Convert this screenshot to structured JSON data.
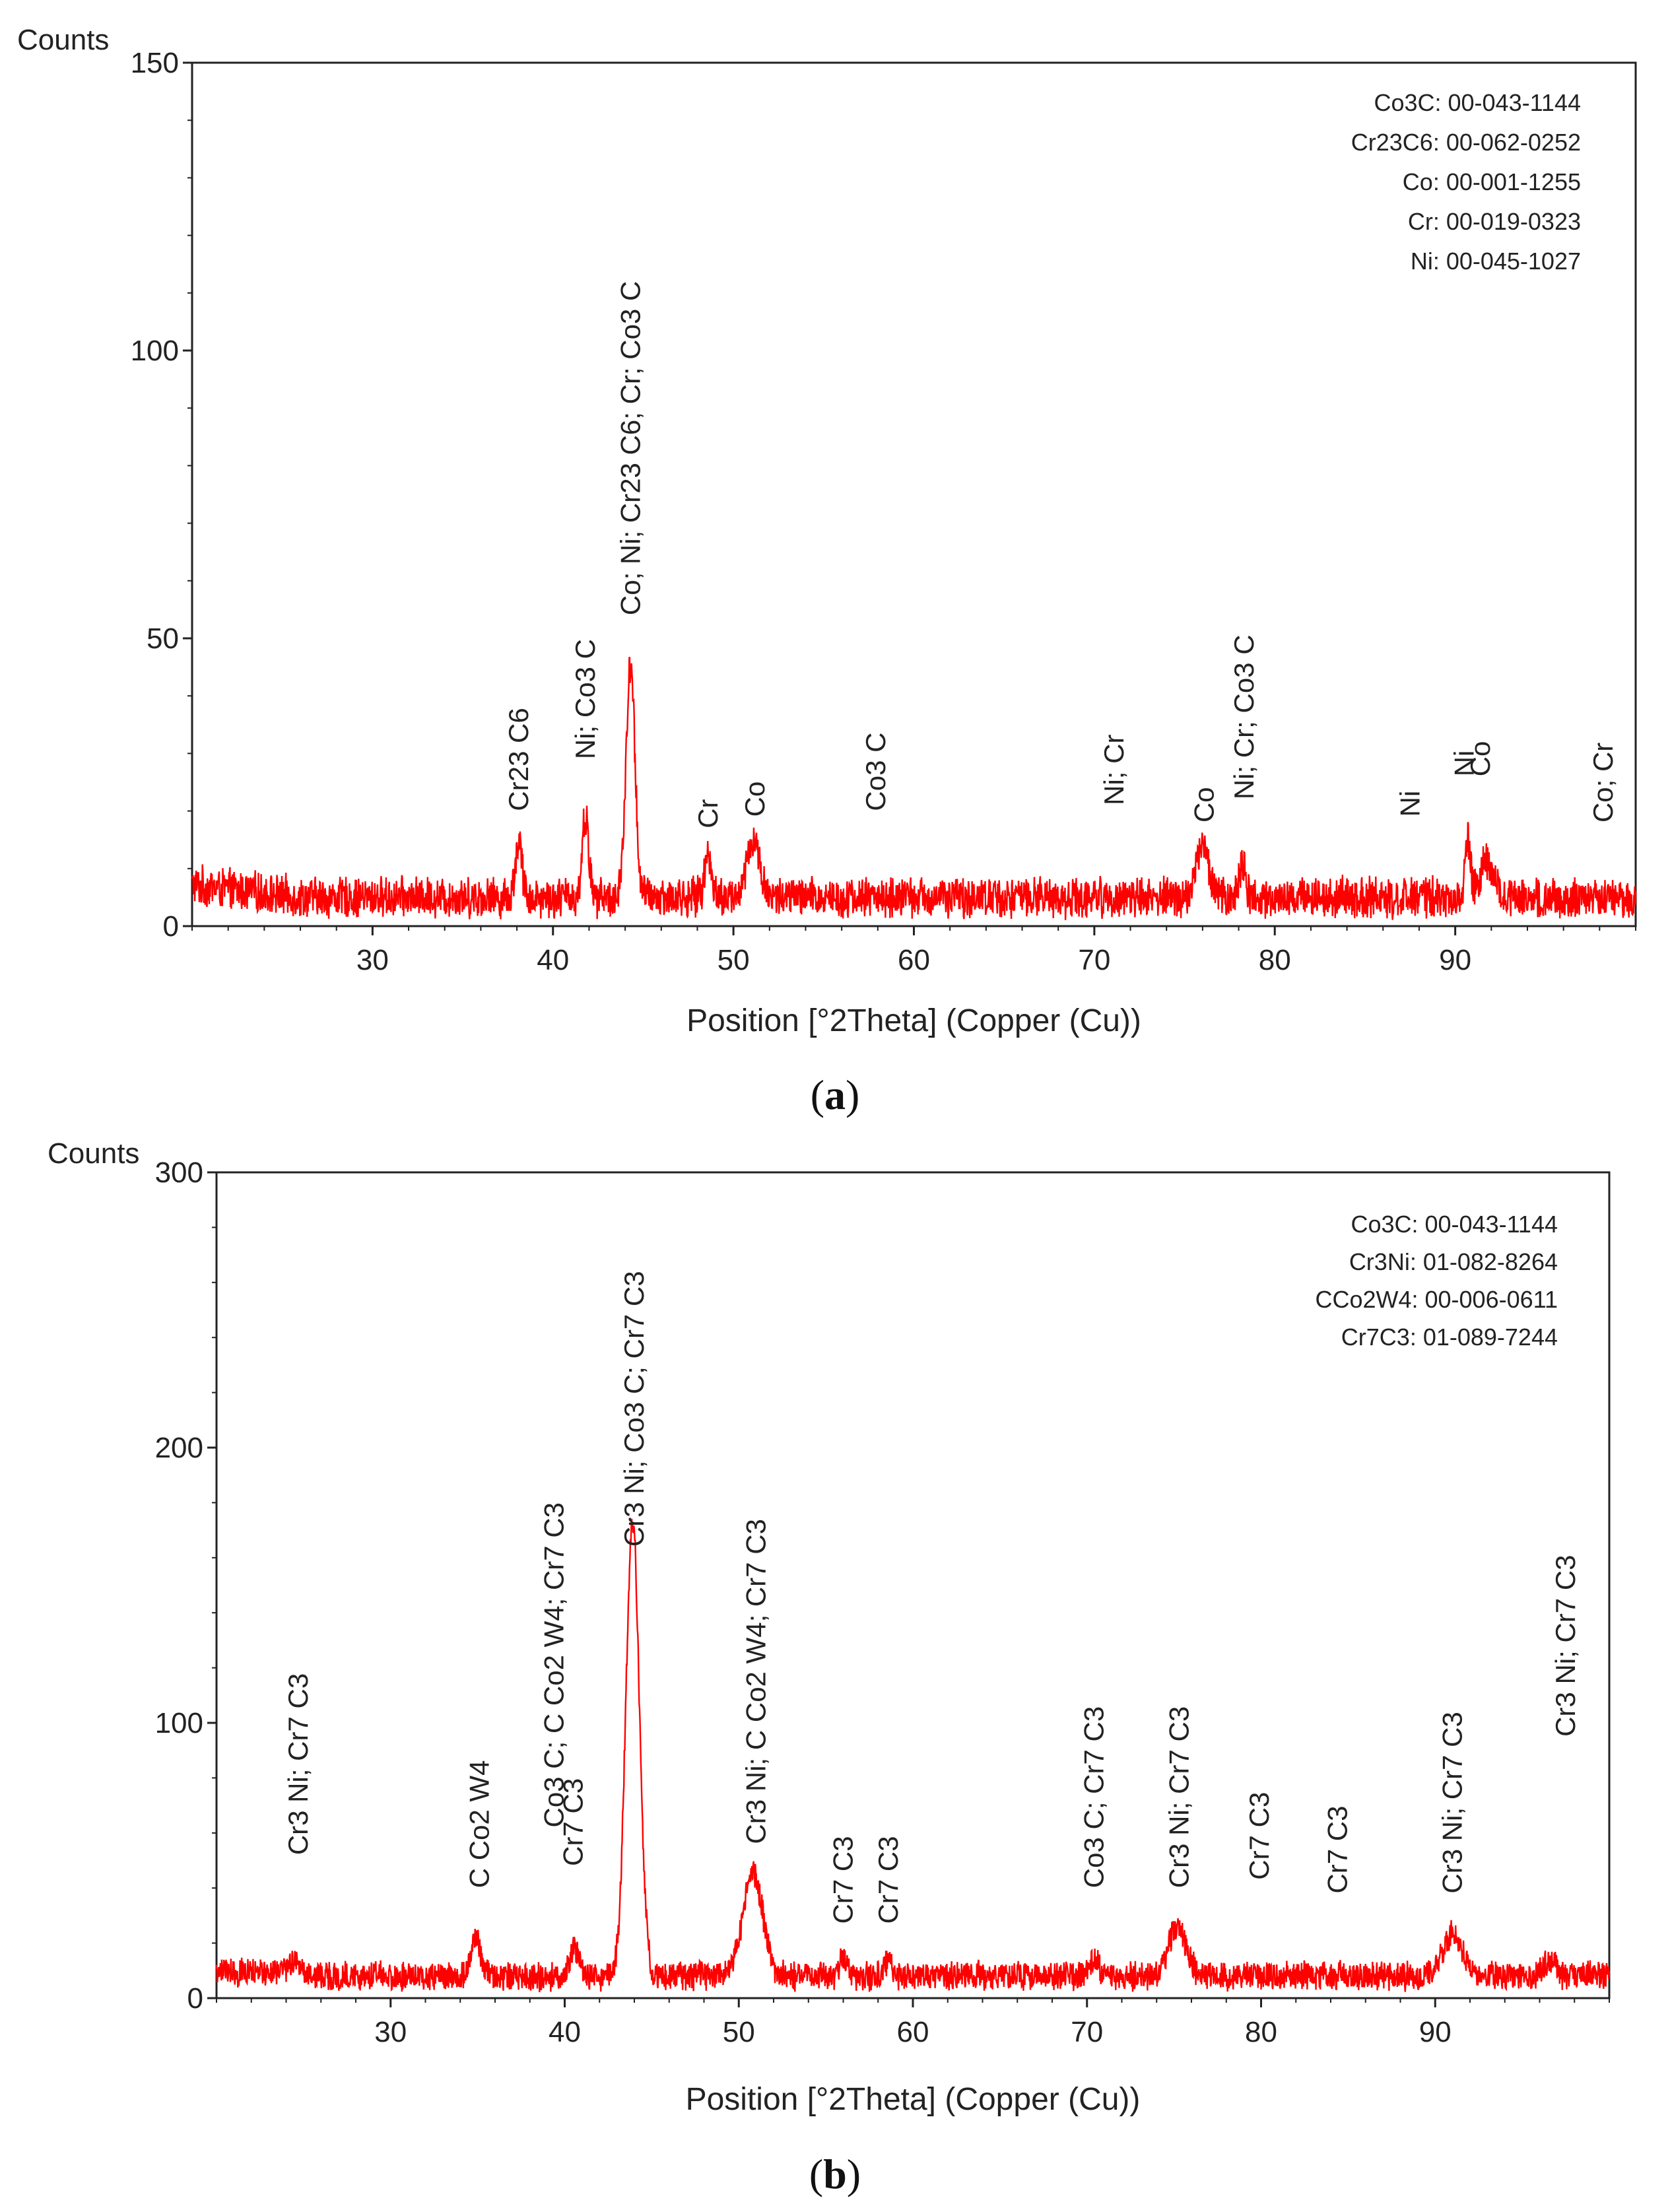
{
  "chart_data": [
    {
      "type": "line",
      "panel": "a",
      "ylabel": "Counts",
      "xlabel": "Position [°2Theta] (Copper (Cu))",
      "xlim": [
        20,
        100
      ],
      "ylim": [
        0,
        150
      ],
      "xticks": [
        30,
        40,
        50,
        60,
        70,
        80,
        90
      ],
      "yticks": [
        0,
        50,
        100,
        150
      ],
      "color": "#ff0000",
      "caption_letter": "a",
      "legend": [
        {
          "phase": "Co3C",
          "sub": "3",
          "base": "Co",
          "rest": "C",
          "code": ": 00-043-1144"
        },
        {
          "phase": "Cr23C6",
          "base": "Cr",
          "sub": "23",
          "rest": "C",
          "sub2": "6",
          "code": ": 00-062-0252"
        },
        {
          "phase": "Co",
          "code": "Co: 00-001-1255"
        },
        {
          "phase": "Cr",
          "code": "Cr: 00-019-0323"
        },
        {
          "phase": "Ni",
          "code": "Ni: 00-045-1027"
        }
      ],
      "baseline": 5,
      "noise": 4,
      "peaks": [
        {
          "x": 38.1,
          "height": 10,
          "width": 0.25
        },
        {
          "x": 41.8,
          "height": 14,
          "width": 0.25
        },
        {
          "x": 44.3,
          "height": 40,
          "width": 0.35
        },
        {
          "x": 48.6,
          "height": 7,
          "width": 0.3
        },
        {
          "x": 51.1,
          "height": 10,
          "width": 0.5
        },
        {
          "x": 76.0,
          "height": 9,
          "width": 0.5
        },
        {
          "x": 78.2,
          "height": 6,
          "width": 0.25
        },
        {
          "x": 90.7,
          "height": 10,
          "width": 0.2
        },
        {
          "x": 91.8,
          "height": 6,
          "width": 0.6
        }
      ],
      "labels": [
        {
          "x": 38.1,
          "y": 20,
          "text": "Cr23 C6"
        },
        {
          "x": 41.8,
          "y": 29,
          "text": "Ni; Co3 C"
        },
        {
          "x": 44.3,
          "y": 54,
          "text": "Co; Ni; Cr23 C6; Cr; Co3 C"
        },
        {
          "x": 48.6,
          "y": 17,
          "text": "Cr"
        },
        {
          "x": 51.2,
          "y": 19,
          "text": "Co"
        },
        {
          "x": 57.9,
          "y": 20,
          "text": "Co3 C"
        },
        {
          "x": 71.1,
          "y": 21,
          "text": "Ni; Cr"
        },
        {
          "x": 76.1,
          "y": 18,
          "text": "Co"
        },
        {
          "x": 78.3,
          "y": 22,
          "text": "Ni; Cr; Co3 C"
        },
        {
          "x": 87.5,
          "y": 19,
          "text": "Ni"
        },
        {
          "x": 90.5,
          "y": 26,
          "text": "Ni"
        },
        {
          "x": 91.4,
          "y": 26,
          "text": "Co"
        },
        {
          "x": 98.2,
          "y": 18,
          "text": "Co; Cr"
        }
      ]
    },
    {
      "type": "line",
      "panel": "b",
      "ylabel": "Counts",
      "xlabel": "Position [°2Theta] (Copper (Cu))",
      "xlim": [
        20,
        100
      ],
      "ylim": [
        0,
        300
      ],
      "xticks": [
        30,
        40,
        50,
        60,
        70,
        80,
        90
      ],
      "yticks": [
        0,
        100,
        200,
        300
      ],
      "color": "#ff0000",
      "caption_letter": "b",
      "legend": [
        {
          "phase": "Co3C",
          "code": "Co3C: 00-043-1144"
        },
        {
          "phase": "Cr3Ni",
          "code": "Cr3Ni: 01-082-8264"
        },
        {
          "phase": "CCo2W4",
          "code": "CCo2W4: 00-006-0611"
        },
        {
          "phase": "Cr7C3",
          "code": "Cr7C3: 01-089-7244"
        }
      ],
      "baseline": 8,
      "noise": 6,
      "peaks": [
        {
          "x": 24.5,
          "height": 4,
          "width": 0.6
        },
        {
          "x": 34.9,
          "height": 14,
          "width": 0.4
        },
        {
          "x": 40.6,
          "height": 10,
          "width": 0.4
        },
        {
          "x": 43.9,
          "height": 165,
          "width": 0.55
        },
        {
          "x": 50.8,
          "height": 38,
          "width": 0.8
        },
        {
          "x": 56.0,
          "height": 7,
          "width": 0.3
        },
        {
          "x": 58.6,
          "height": 6,
          "width": 0.3
        },
        {
          "x": 70.4,
          "height": 6,
          "width": 0.4
        },
        {
          "x": 75.2,
          "height": 18,
          "width": 0.7
        },
        {
          "x": 91.0,
          "height": 15,
          "width": 0.8
        },
        {
          "x": 96.6,
          "height": 6,
          "width": 0.5
        }
      ],
      "labels": [
        {
          "x": 24.7,
          "y": 52,
          "text": "Cr3 Ni; Cr7 C3"
        },
        {
          "x": 35.1,
          "y": 40,
          "text": "C Co2 W4"
        },
        {
          "x": 39.4,
          "y": 62,
          "text": "Co3 C; C Co2 W4; Cr7 C3"
        },
        {
          "x": 40.5,
          "y": 48,
          "text": "Cr7 C3"
        },
        {
          "x": 44.0,
          "y": 164,
          "text": "Cr3 Ni; Co3 C; Cr7 C3"
        },
        {
          "x": 51.0,
          "y": 56,
          "text": "Cr3 Ni; C Co2 W4; Cr7 C3"
        },
        {
          "x": 56.0,
          "y": 27,
          "text": "Cr7 C3"
        },
        {
          "x": 58.6,
          "y": 27,
          "text": "Cr7 C3"
        },
        {
          "x": 70.4,
          "y": 40,
          "text": "Co3 C; Cr7 C3"
        },
        {
          "x": 75.3,
          "y": 40,
          "text": "Cr3 Ni; Cr7 C3"
        },
        {
          "x": 79.9,
          "y": 43,
          "text": "Cr7 C3"
        },
        {
          "x": 84.4,
          "y": 38,
          "text": "Cr7 C3"
        },
        {
          "x": 91.0,
          "y": 38,
          "text": "Cr3 Ni; Cr7 C3"
        },
        {
          "x": 97.5,
          "y": 95,
          "text": "Cr3 Ni; Cr7 C3"
        }
      ]
    }
  ]
}
